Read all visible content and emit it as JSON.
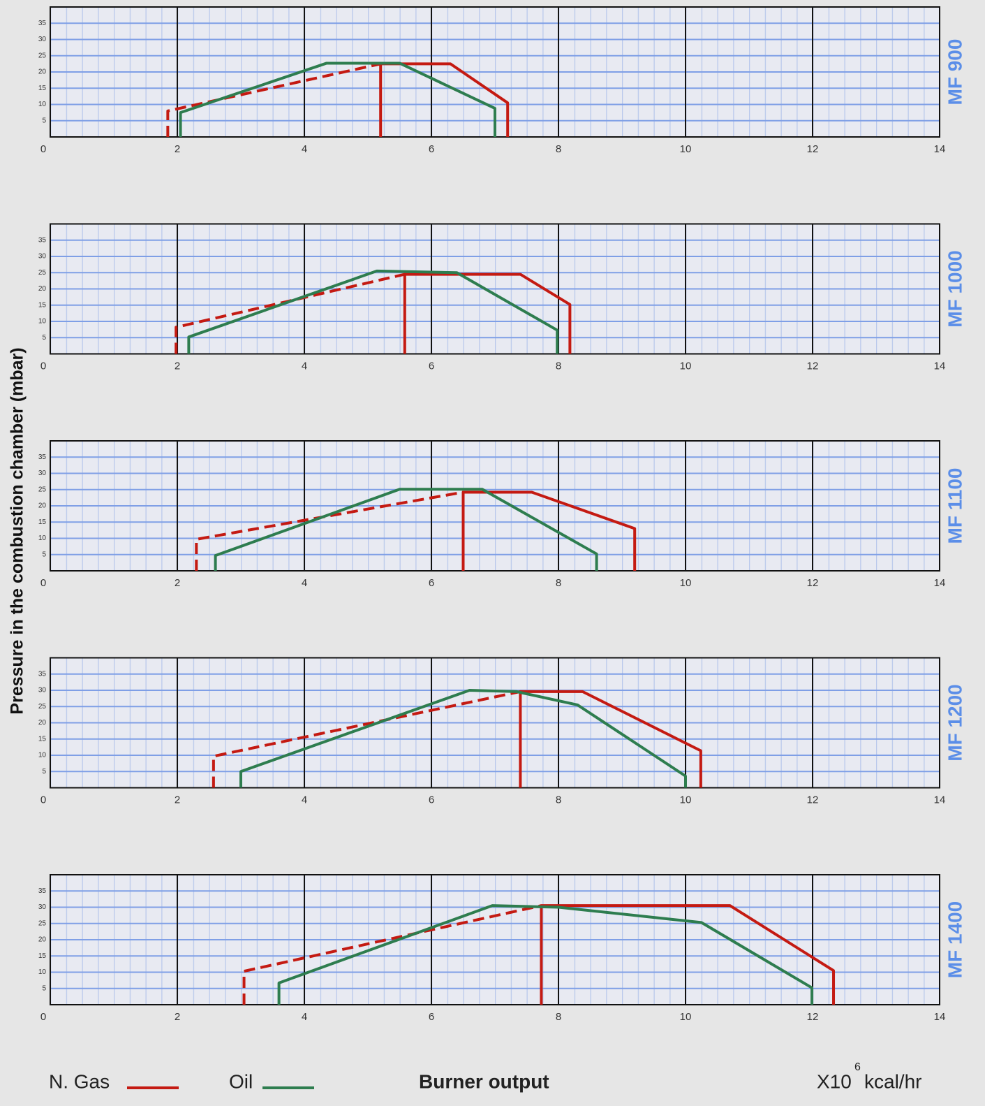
{
  "page": {
    "y_label": "Pressure in the combustion chamber (mbar)",
    "x_label": "Burner output",
    "x_unit": {
      "base": "X10",
      "exponent": "6",
      "unit": "kcal/hr"
    },
    "legend": [
      {
        "name": "N. Gas",
        "color": "#c41a12"
      },
      {
        "name": "Oil",
        "color": "#2e7d4f"
      }
    ]
  },
  "chart_data": [
    {
      "type": "line",
      "label": "MF 900",
      "xlim": [
        0,
        14
      ],
      "xticks": [
        0,
        2,
        4,
        6,
        8,
        10,
        12,
        14
      ],
      "ylim": [
        0,
        40
      ],
      "yticks": [
        5,
        10,
        15,
        20,
        25,
        30,
        35
      ],
      "grid": true,
      "series": [
        {
          "color": "#c41a12",
          "style": "dashed",
          "x": [
            1.85,
            1.85,
            5.2
          ],
          "values": [
            0,
            8,
            22.5
          ]
        },
        {
          "color": "#c41a12",
          "style": "solid",
          "x": [
            5.2,
            5.2,
            6.3,
            7.2,
            7.2
          ],
          "values": [
            0,
            22.5,
            22.5,
            10.5,
            0
          ]
        },
        {
          "color": "#2e7d4f",
          "style": "solid",
          "x": [
            2.05,
            2.05,
            4.35,
            5.5,
            7.0,
            7.0
          ],
          "values": [
            0,
            7.5,
            22.7,
            22.7,
            8.8,
            0
          ]
        }
      ]
    },
    {
      "type": "line",
      "label": "MF 1000",
      "xlim": [
        0,
        14
      ],
      "xticks": [
        0,
        2,
        4,
        6,
        8,
        10,
        12,
        14
      ],
      "ylim": [
        0,
        40
      ],
      "yticks": [
        5,
        10,
        15,
        20,
        25,
        30,
        35
      ],
      "grid": true,
      "series": [
        {
          "color": "#c41a12",
          "style": "dashed",
          "x": [
            1.98,
            1.98,
            5.58
          ],
          "values": [
            0,
            8.2,
            24.5
          ]
        },
        {
          "color": "#c41a12",
          "style": "solid",
          "x": [
            5.58,
            5.58,
            7.4,
            8.18,
            8.18
          ],
          "values": [
            0,
            24.5,
            24.5,
            15.2,
            0
          ]
        },
        {
          "color": "#2e7d4f",
          "style": "solid",
          "x": [
            2.18,
            2.18,
            5.14,
            6.4,
            7.98,
            7.98
          ],
          "values": [
            0,
            5.2,
            25.5,
            25,
            7.3,
            0
          ]
        }
      ]
    },
    {
      "type": "line",
      "label": "MF 1100",
      "xlim": [
        0,
        14
      ],
      "xticks": [
        0,
        2,
        4,
        6,
        8,
        10,
        12,
        14
      ],
      "ylim": [
        0,
        40
      ],
      "yticks": [
        5,
        10,
        15,
        20,
        25,
        30,
        35
      ],
      "grid": true,
      "series": [
        {
          "color": "#c41a12",
          "style": "dashed",
          "x": [
            2.3,
            2.3,
            6.5
          ],
          "values": [
            0,
            9.7,
            24.2
          ]
        },
        {
          "color": "#c41a12",
          "style": "solid",
          "x": [
            6.5,
            6.5,
            7.58,
            9.2,
            9.2
          ],
          "values": [
            0,
            24.2,
            24.2,
            13,
            0
          ]
        },
        {
          "color": "#2e7d4f",
          "style": "solid",
          "x": [
            2.6,
            2.6,
            5.5,
            6.8,
            8.6,
            8.6
          ],
          "values": [
            0,
            4.7,
            25.1,
            25.1,
            5.2,
            0
          ]
        }
      ]
    },
    {
      "type": "line",
      "label": "MF 1200",
      "xlim": [
        0,
        14
      ],
      "xticks": [
        0,
        2,
        4,
        6,
        8,
        10,
        12,
        14
      ],
      "ylim": [
        0,
        40
      ],
      "yticks": [
        5,
        10,
        15,
        20,
        25,
        30,
        35
      ],
      "grid": true,
      "series": [
        {
          "color": "#c41a12",
          "style": "dashed",
          "x": [
            2.57,
            2.57,
            7.4
          ],
          "values": [
            0,
            9.7,
            29.6
          ]
        },
        {
          "color": "#c41a12",
          "style": "solid",
          "x": [
            7.4,
            7.4,
            8.38,
            10.24,
            10.24
          ],
          "values": [
            0,
            29.6,
            29.6,
            11.4,
            0
          ]
        },
        {
          "color": "#2e7d4f",
          "style": "solid",
          "x": [
            3.0,
            3.0,
            6.6,
            7.34,
            8.3,
            10.0,
            10.0
          ],
          "values": [
            0,
            5,
            30,
            29.6,
            25.5,
            3.6,
            0
          ]
        }
      ]
    },
    {
      "type": "line",
      "label": "MF 1400",
      "xlim": [
        0,
        14
      ],
      "xticks": [
        0,
        2,
        4,
        6,
        8,
        10,
        12,
        14
      ],
      "ylim": [
        0,
        40
      ],
      "yticks": [
        5,
        10,
        15,
        20,
        25,
        30,
        35
      ],
      "grid": true,
      "series": [
        {
          "color": "#c41a12",
          "style": "dashed",
          "x": [
            3.05,
            3.05,
            7.73
          ],
          "values": [
            0,
            10.3,
            30.5
          ]
        },
        {
          "color": "#c41a12",
          "style": "solid",
          "x": [
            7.73,
            7.73,
            10.7,
            12.33,
            12.33
          ],
          "values": [
            0,
            30.5,
            30.5,
            10.5,
            0
          ]
        },
        {
          "color": "#2e7d4f",
          "style": "solid",
          "x": [
            3.6,
            3.6,
            6.96,
            8.0,
            10.25,
            11.99,
            11.99
          ],
          "values": [
            0,
            6.7,
            30.5,
            30,
            25.3,
            5.2,
            0
          ]
        }
      ]
    }
  ]
}
